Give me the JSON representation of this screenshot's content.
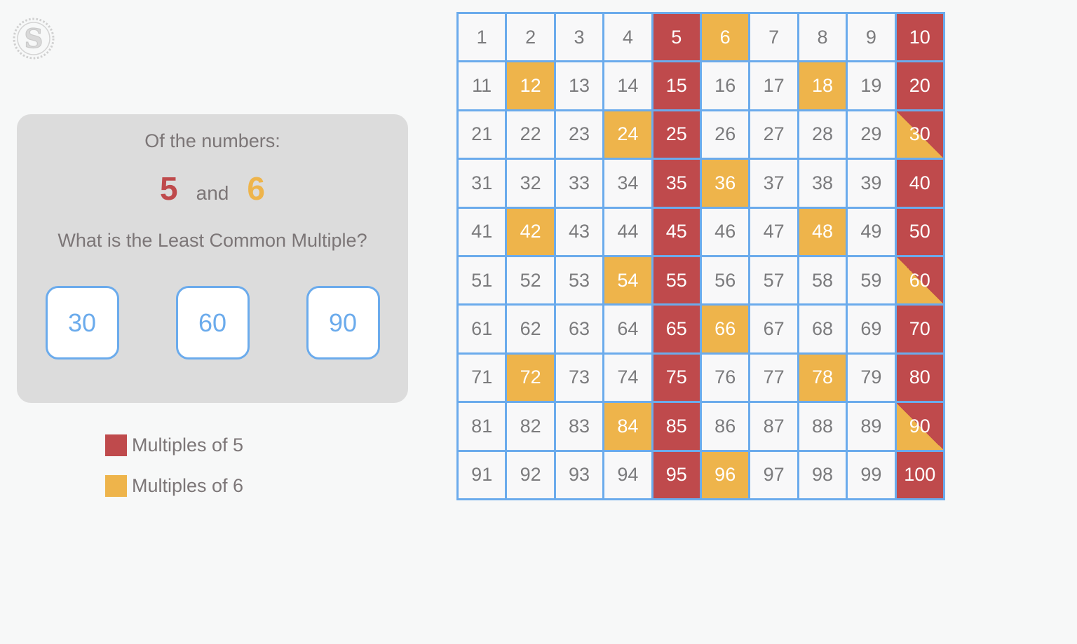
{
  "colors": {
    "page_bg": "#f7f8f8",
    "card_bg": "#dcdcdc",
    "red": "#bf4a4c",
    "yellow": "#eeb44b",
    "blue": "#6babec",
    "text_gray": "#7c7677",
    "grid_text_gray": "#7b7b7d",
    "cell_bg": "#f8f8f9",
    "logo_gray": "#c7c7c7"
  },
  "logo": {
    "letter": "S"
  },
  "question": {
    "intro": "Of the numbers:",
    "number_a": "5",
    "conjunction": "and",
    "number_b": "6",
    "prompt": "What is the Least Common Multiple?",
    "choices": [
      "30",
      "60",
      "90"
    ]
  },
  "legend": {
    "items": [
      {
        "label": "Multiples of 5",
        "color_key": "red"
      },
      {
        "label": "Multiples of 6",
        "color_key": "yellow"
      }
    ]
  },
  "grid": {
    "rows": 10,
    "cols": 10,
    "numbers": [
      1,
      2,
      3,
      4,
      5,
      6,
      7,
      8,
      9,
      10,
      11,
      12,
      13,
      14,
      15,
      16,
      17,
      18,
      19,
      20,
      21,
      22,
      23,
      24,
      25,
      26,
      27,
      28,
      29,
      30,
      31,
      32,
      33,
      34,
      35,
      36,
      37,
      38,
      39,
      40,
      41,
      42,
      43,
      44,
      45,
      46,
      47,
      48,
      49,
      50,
      51,
      52,
      53,
      54,
      55,
      56,
      57,
      58,
      59,
      60,
      61,
      62,
      63,
      64,
      65,
      66,
      67,
      68,
      69,
      70,
      71,
      72,
      73,
      74,
      75,
      76,
      77,
      78,
      79,
      80,
      81,
      82,
      83,
      84,
      85,
      86,
      87,
      88,
      89,
      90,
      91,
      92,
      93,
      94,
      95,
      96,
      97,
      98,
      99,
      100
    ],
    "multiples_of_5": [
      5,
      10,
      15,
      20,
      25,
      30,
      35,
      40,
      45,
      50,
      55,
      60,
      65,
      70,
      75,
      80,
      85,
      90,
      95,
      100
    ],
    "multiples_of_6": [
      6,
      12,
      18,
      24,
      30,
      36,
      42,
      48,
      54,
      60,
      66,
      72,
      78,
      84,
      90,
      96
    ],
    "common_multiples": [
      30,
      60,
      90
    ]
  }
}
